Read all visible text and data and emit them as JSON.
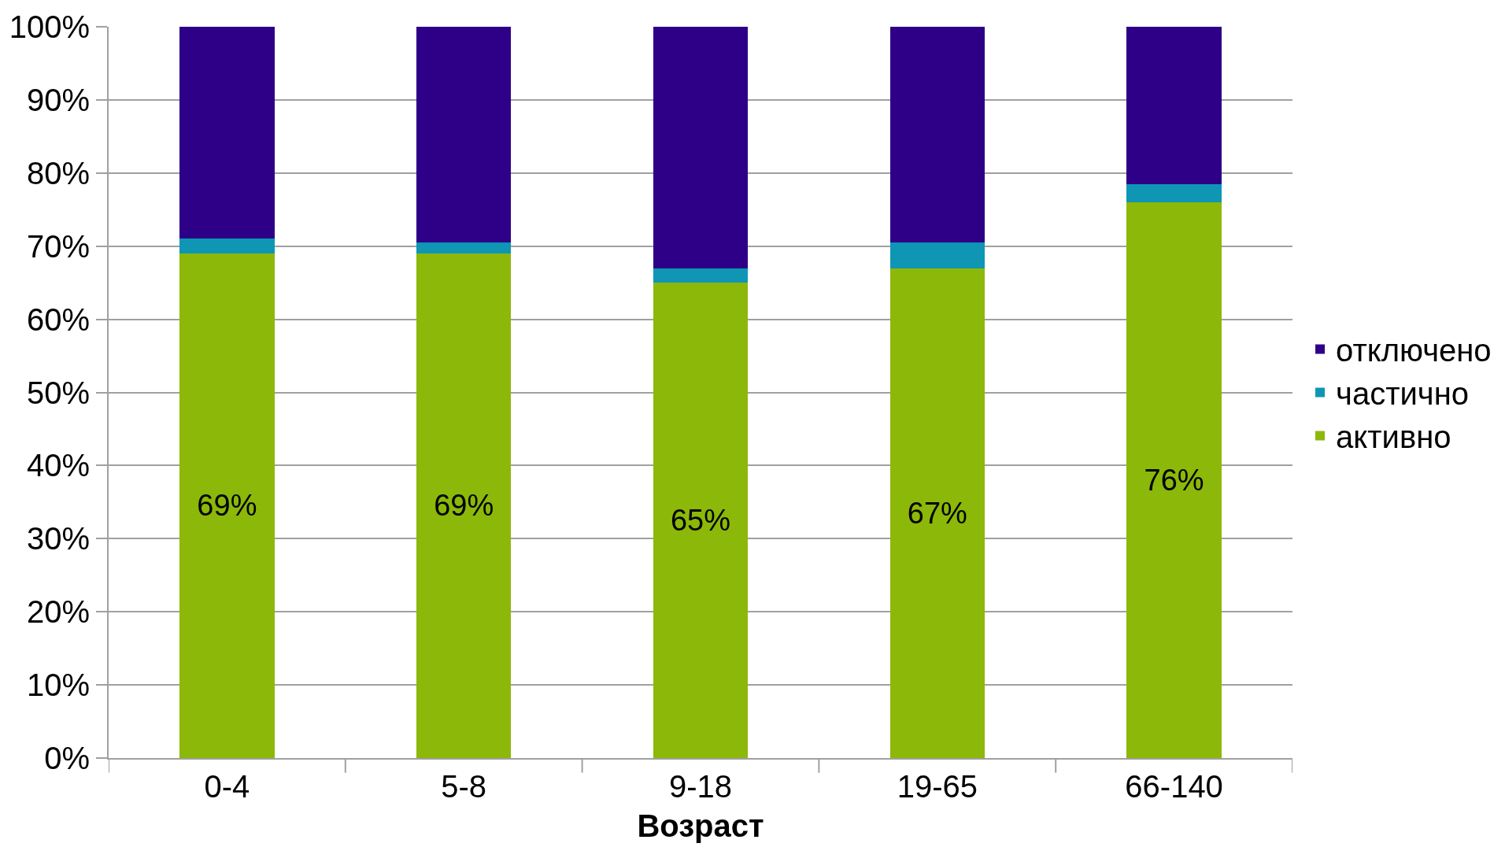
{
  "chart_data": {
    "type": "bar",
    "xlabel": "Возраст",
    "stacked": true,
    "categories": [
      "0-4",
      "5-8",
      "9-18",
      "19-65",
      "66-140"
    ],
    "series": [
      {
        "name": "активно",
        "color": "#8cb80a",
        "values": [
          69,
          69,
          65,
          67,
          76
        ],
        "value_labels": [
          "69%",
          "69%",
          "65%",
          "67%",
          "76%"
        ]
      },
      {
        "name": "частично",
        "color": "#0e96b4",
        "values": [
          2,
          1.5,
          2,
          3.5,
          2.5
        ]
      },
      {
        "name": "отключено",
        "color": "#2e0087",
        "values": [
          29,
          29.5,
          33,
          29.5,
          21.5
        ]
      }
    ],
    "ylim": [
      0,
      100
    ],
    "yticks": [
      {
        "value": 0,
        "label": "0%"
      },
      {
        "value": 10,
        "label": "10%"
      },
      {
        "value": 20,
        "label": "20%"
      },
      {
        "value": 30,
        "label": "30%"
      },
      {
        "value": 40,
        "label": "40%"
      },
      {
        "value": 50,
        "label": "50%"
      },
      {
        "value": 60,
        "label": "60%"
      },
      {
        "value": 70,
        "label": "70%"
      },
      {
        "value": 80,
        "label": "80%"
      },
      {
        "value": 90,
        "label": "90%"
      },
      {
        "value": 100,
        "label": "100%"
      }
    ],
    "grid": "y",
    "legend": "right"
  }
}
